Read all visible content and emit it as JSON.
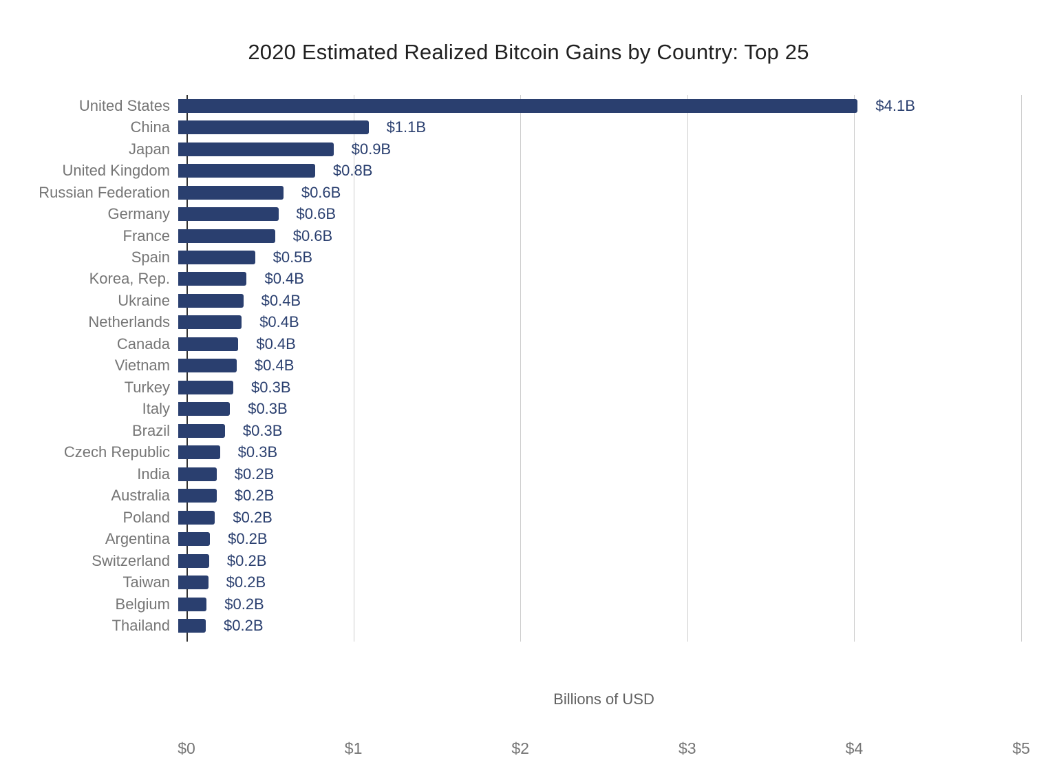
{
  "chart_data": {
    "type": "bar",
    "orientation": "horizontal",
    "title": "2020 Estimated Realized Bitcoin Gains by Country: Top 25",
    "xlabel": "Billions of USD",
    "xlim": [
      0,
      5
    ],
    "x_ticks": [
      "$0",
      "$1",
      "$2",
      "$3",
      "$4",
      "$5"
    ],
    "x_tick_values": [
      0,
      1,
      2,
      3,
      4,
      5
    ],
    "grid": true,
    "legend": "none",
    "bar_color": "#2a3f6f",
    "value_label_color": "#2a3f6f",
    "category_label_color": "#757575",
    "categories": [
      "United States",
      "China",
      "Japan",
      "United Kingdom",
      "Russian Federation",
      "Germany",
      "France",
      "Spain",
      "Korea, Rep.",
      "Ukraine",
      "Netherlands",
      "Canada",
      "Vietnam",
      "Turkey",
      "Italy",
      "Brazil",
      "Czech Republic",
      "India",
      "Australia",
      "Poland",
      "Argentina",
      "Switzerland",
      "Taiwan",
      "Belgium",
      "Thailand"
    ],
    "values": [
      4.07,
      1.14,
      0.93,
      0.82,
      0.63,
      0.6,
      0.58,
      0.46,
      0.41,
      0.39,
      0.38,
      0.36,
      0.35,
      0.33,
      0.31,
      0.28,
      0.25,
      0.23,
      0.23,
      0.22,
      0.19,
      0.185,
      0.18,
      0.17,
      0.165
    ],
    "value_labels": [
      "$4.1B",
      "$1.1B",
      "$0.9B",
      "$0.8B",
      "$0.6B",
      "$0.6B",
      "$0.6B",
      "$0.5B",
      "$0.4B",
      "$0.4B",
      "$0.4B",
      "$0.4B",
      "$0.4B",
      "$0.3B",
      "$0.3B",
      "$0.3B",
      "$0.3B",
      "$0.2B",
      "$0.2B",
      "$0.2B",
      "$0.2B",
      "$0.2B",
      "$0.2B",
      "$0.2B",
      "$0.2B"
    ]
  }
}
